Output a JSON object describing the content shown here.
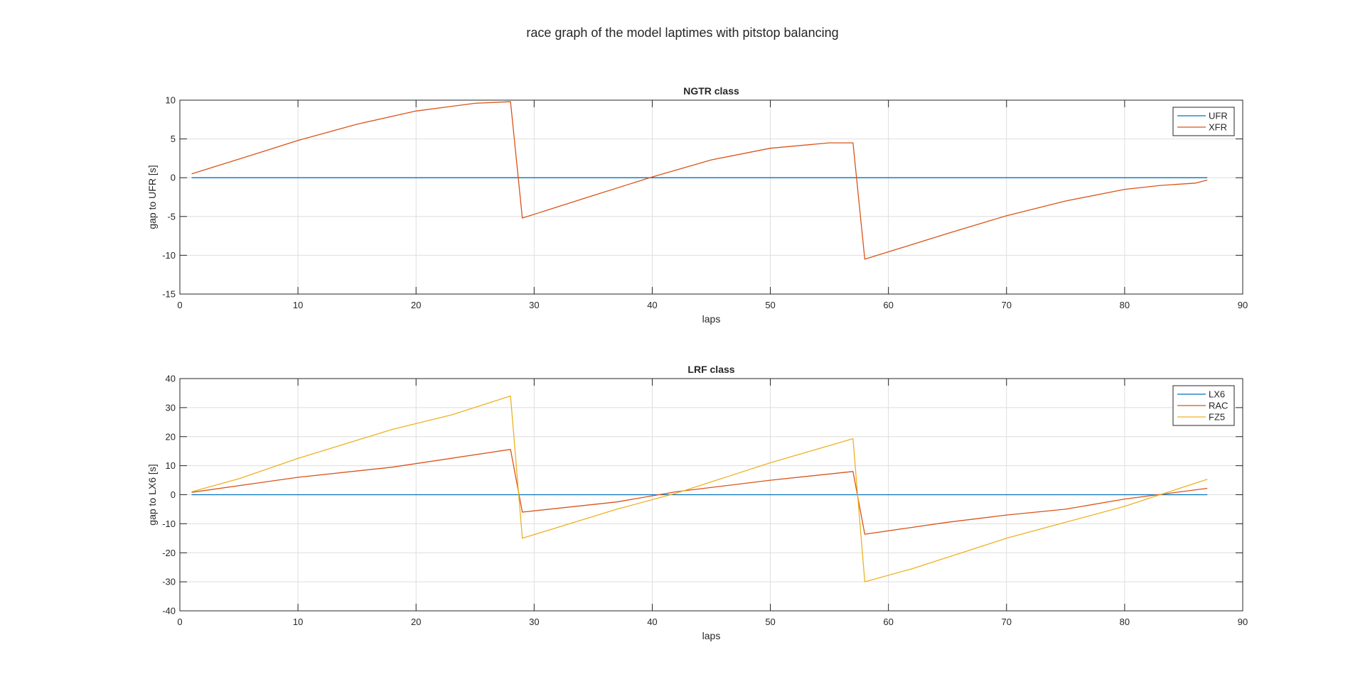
{
  "figure": {
    "title": "race graph of the model laptimes with pitstop balancing"
  },
  "colors": {
    "series1": "#0072BD",
    "series2": "#D95319",
    "series3": "#EDB120",
    "grid": "#dedede",
    "axis": "#262626"
  },
  "chart_data": [
    {
      "type": "line",
      "title": "NGTR class",
      "xlabel": "laps",
      "ylabel": "gap to UFR [s]",
      "xlim": [
        0,
        90
      ],
      "ylim": [
        -15,
        10
      ],
      "xticks": [
        0,
        10,
        20,
        30,
        40,
        50,
        60,
        70,
        80,
        90
      ],
      "yticks": [
        -15,
        -10,
        -5,
        0,
        5,
        10
      ],
      "grid": true,
      "legend": "top-right",
      "series": [
        {
          "name": "UFR",
          "x": [
            1,
            87
          ],
          "y": [
            0,
            0
          ]
        },
        {
          "name": "XFR",
          "x": [
            1,
            5,
            10,
            15,
            20,
            25,
            28,
            29,
            35,
            40,
            45,
            50,
            55,
            57,
            58,
            65,
            70,
            75,
            80,
            83,
            86,
            87
          ],
          "y": [
            0.5,
            2.4,
            4.8,
            6.9,
            8.6,
            9.6,
            9.8,
            -5.2,
            -2.3,
            0.1,
            2.3,
            3.8,
            4.5,
            4.5,
            -10.5,
            -7.2,
            -4.9,
            -3.0,
            -1.5,
            -1.0,
            -0.7,
            -0.3
          ]
        }
      ]
    },
    {
      "type": "line",
      "title": "LRF class",
      "xlabel": "laps",
      "ylabel": "gap to LX6 [s]",
      "xlim": [
        0,
        90
      ],
      "ylim": [
        -40,
        40
      ],
      "xticks": [
        0,
        10,
        20,
        30,
        40,
        50,
        60,
        70,
        80,
        90
      ],
      "yticks": [
        -40,
        -30,
        -20,
        -10,
        0,
        10,
        20,
        30,
        40
      ],
      "grid": true,
      "legend": "top-right",
      "series": [
        {
          "name": "LX6",
          "x": [
            1,
            87
          ],
          "y": [
            0,
            0
          ]
        },
        {
          "name": "RAC",
          "x": [
            1,
            10,
            18,
            28,
            29,
            37,
            42,
            50,
            57,
            58,
            65,
            70,
            75,
            80,
            87
          ],
          "y": [
            0.8,
            6.0,
            9.5,
            15.6,
            -6.0,
            -2.5,
            1.0,
            5.0,
            8.0,
            -13.6,
            -9.5,
            -7.0,
            -5.0,
            -1.5,
            2.2
          ]
        },
        {
          "name": "FZ5",
          "x": [
            1,
            5,
            10,
            18,
            23,
            28,
            29,
            37,
            42,
            50,
            57,
            58,
            62,
            70,
            75,
            80,
            83,
            87
          ],
          "y": [
            1.0,
            5.5,
            12.5,
            22.5,
            27.5,
            34.0,
            -15.0,
            -5.0,
            0.5,
            11.0,
            19.3,
            -30.0,
            -25.5,
            -15.0,
            -9.5,
            -4.0,
            0.0,
            5.3
          ]
        }
      ]
    }
  ]
}
